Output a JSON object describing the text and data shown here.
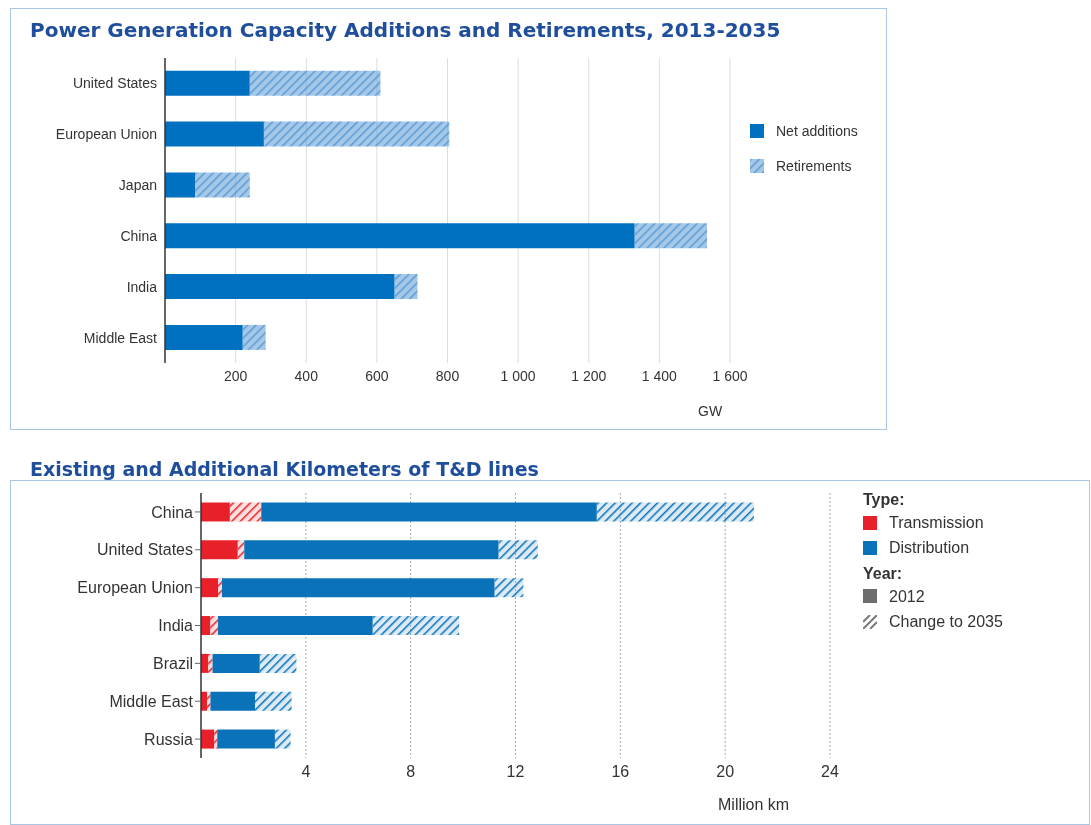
{
  "chart_data": [
    {
      "type": "bar",
      "orientation": "horizontal",
      "stacked": true,
      "title": "Power Generation Capacity Additions and Retirements, 2013-2035",
      "xlabel": "GW",
      "categories": [
        "United States",
        "European Union",
        "Japan",
        "China",
        "India",
        "Middle East"
      ],
      "series": [
        {
          "name": "Net additions",
          "color": "#0070c0",
          "values": [
            240,
            280,
            85,
            1330,
            650,
            220
          ]
        },
        {
          "name": "Retirements",
          "color": "#5b9bd5",
          "values": [
            370,
            525,
            155,
            205,
            65,
            65
          ]
        }
      ],
      "xlim": [
        0,
        1600
      ],
      "xticks": [
        200,
        400,
        600,
        800,
        {
          "value": 1000,
          "label": "1 000"
        },
        {
          "value": 1200,
          "label": "1 200"
        },
        {
          "value": 1400,
          "label": "1 400"
        },
        {
          "value": 1600,
          "label": "1 600"
        }
      ],
      "grid": "x",
      "legend": "right"
    },
    {
      "type": "bar",
      "orientation": "horizontal",
      "stacked": true,
      "title": "Existing and Additional Kilometers of T&D lines",
      "xlabel": "Million km",
      "legend_title": "Type:",
      "categories": [
        "China",
        "United States",
        "European Union",
        "India",
        "Brazil",
        "Middle East",
        "Russia"
      ],
      "series": [
        {
          "name": "Transmission",
          "color": "#e8202a",
          "values": [
            1.1,
            1.4,
            0.65,
            0.35,
            0.27,
            0.23,
            0.5
          ]
        },
        {
          "color": "#e8202a",
          "values": [
            1.2,
            0.25,
            0.15,
            0.3,
            0.17,
            0.13,
            0.12
          ]
        },
        {
          "name": "Distribution",
          "color": "#0a72b9",
          "values": [
            12.8,
            9.7,
            10.4,
            5.9,
            1.8,
            1.7,
            2.2
          ]
        },
        {
          "color": "#0a72b9",
          "values": [
            6,
            1.5,
            1.1,
            3.3,
            1.4,
            1.4,
            0.6
          ]
        }
      ],
      "annotations": [
        "Year:",
        "2012",
        "Change to 2035"
      ],
      "xlim": [
        0,
        24
      ],
      "xticks": [
        4,
        8,
        12,
        16,
        20,
        24
      ],
      "grid": "x",
      "legend": "right"
    }
  ]
}
